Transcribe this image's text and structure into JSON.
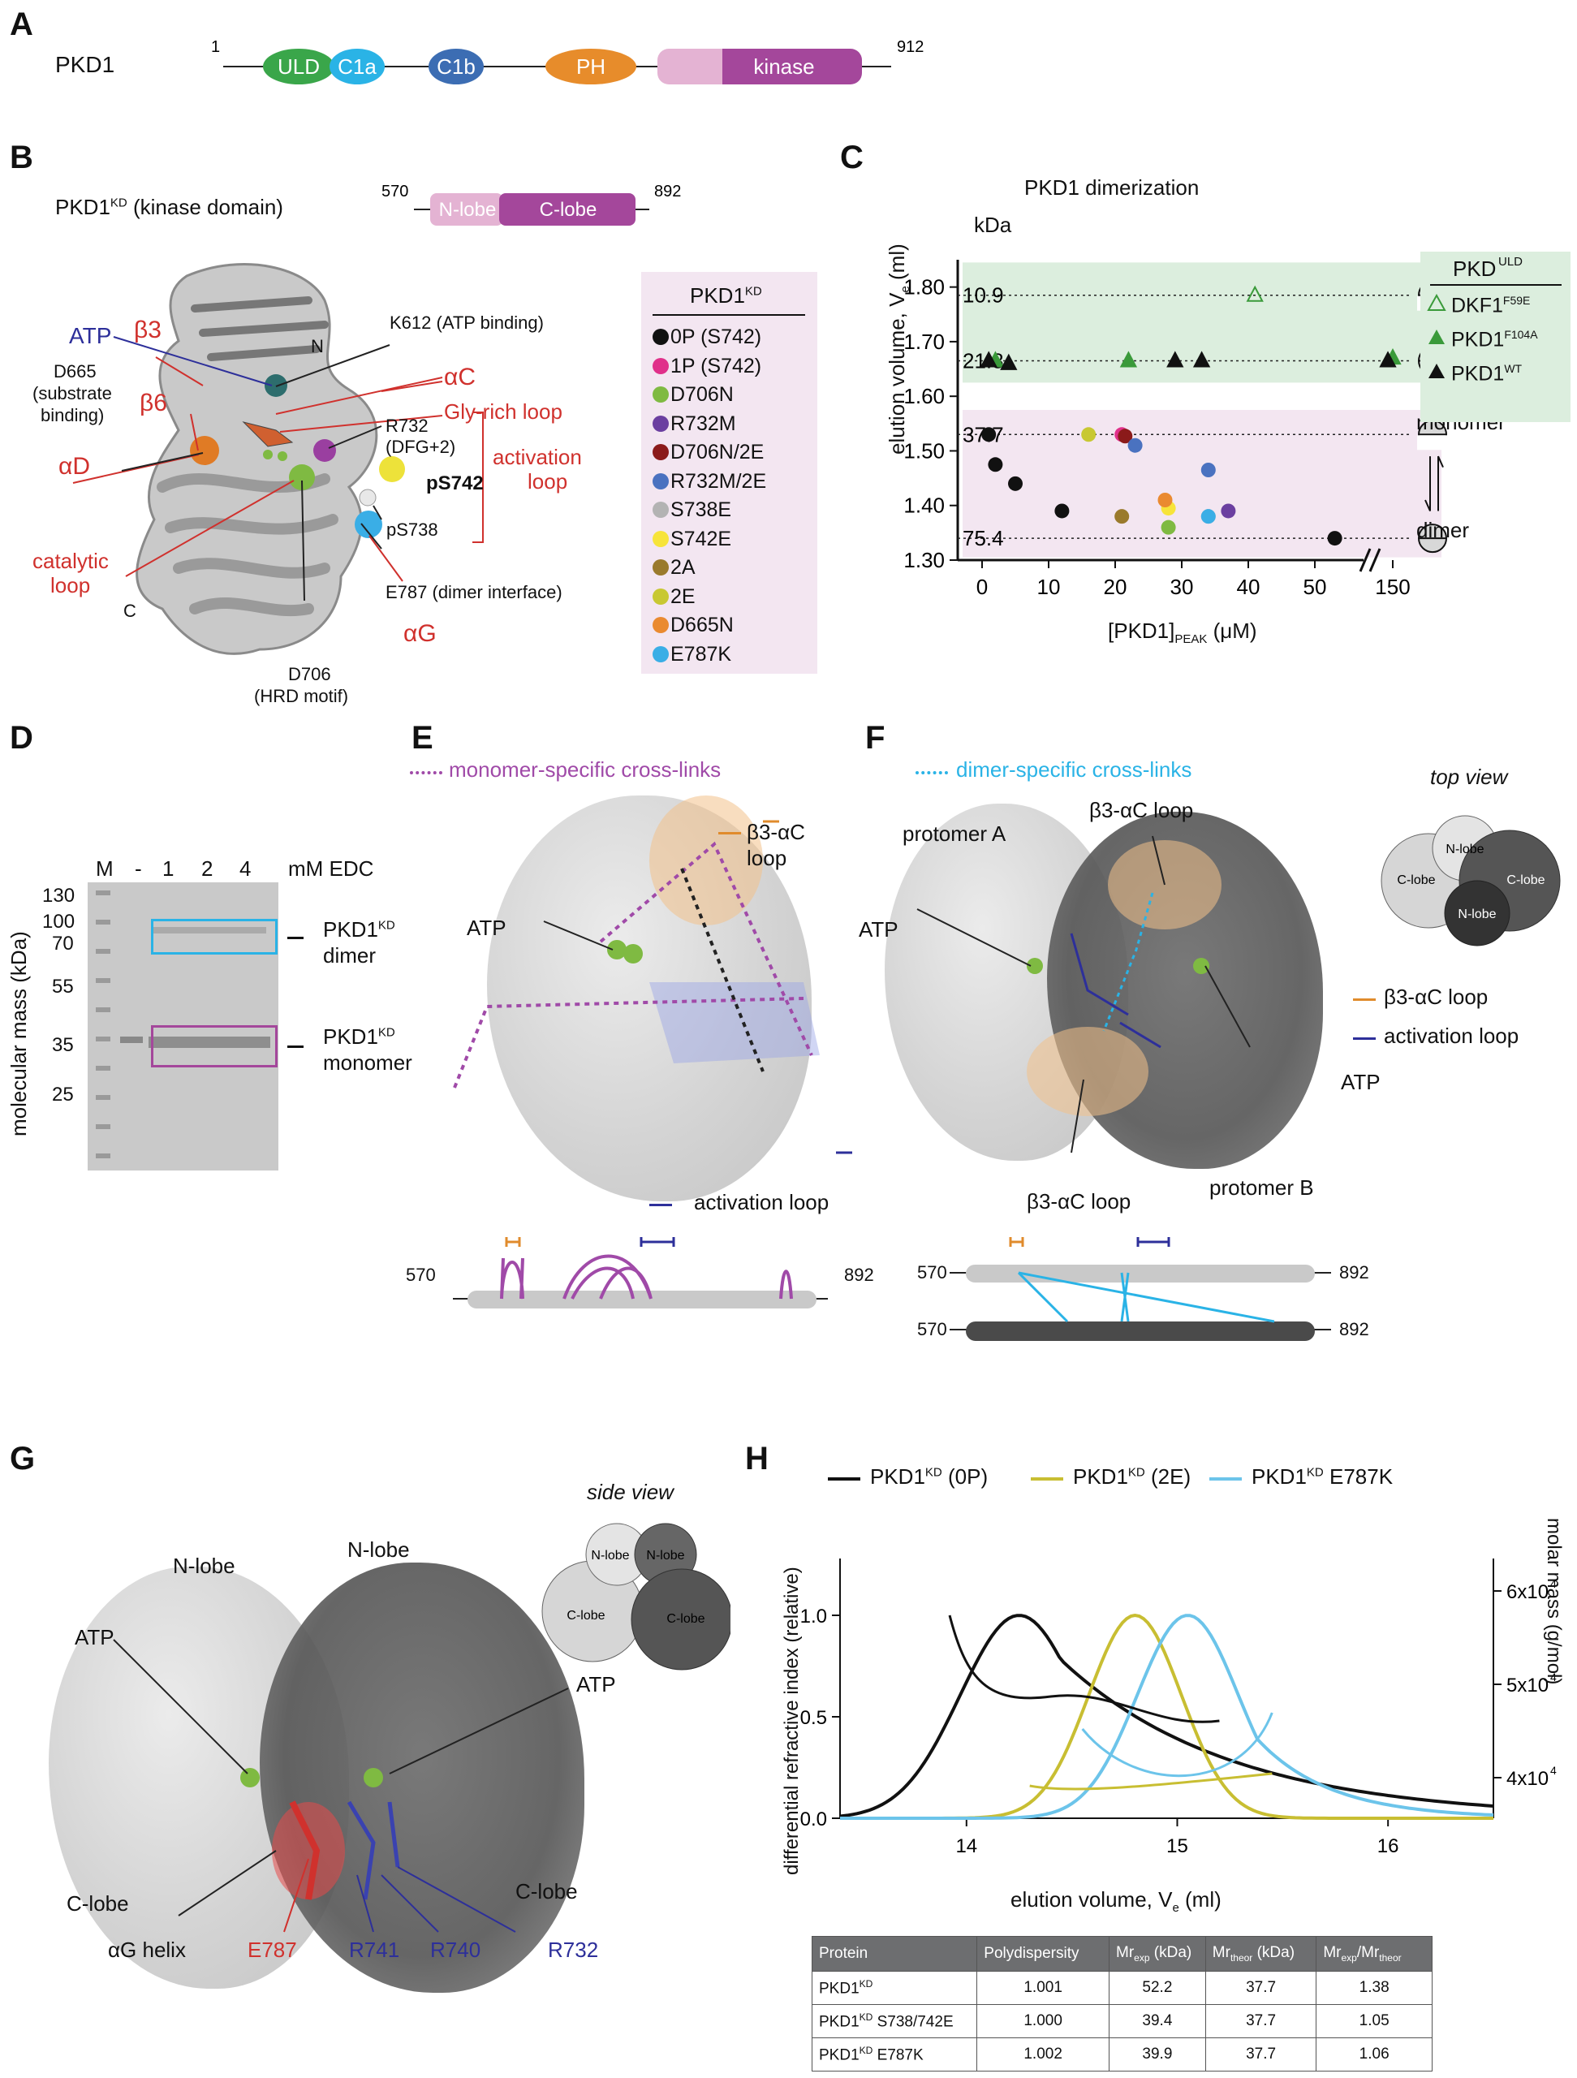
{
  "panels": {
    "A": "A",
    "B": "B",
    "C": "C",
    "D": "D",
    "E": "E",
    "F": "F",
    "G": "G",
    "H": "H"
  },
  "panelA": {
    "protein": "PKD1",
    "start": "1",
    "end": "912",
    "domains": [
      "ULD",
      "C1a",
      "C1b",
      "PH",
      "kinase"
    ],
    "colors": {
      "ULD": "#3aa64a",
      "C1a": "#2ab3e6",
      "C1b": "#3c6db3",
      "PH": "#e78c2b",
      "kinase_light": "#e4b3d3",
      "kinase": "#a4479b"
    }
  },
  "panelB": {
    "title": "PKD1",
    "title_sup": "KD",
    "title_rest": " (kinase domain)",
    "start": "570",
    "end": "892",
    "nlobe": "N-lobe",
    "clobe": "C-lobe",
    "labels": {
      "b3": "β3",
      "N": "N",
      "ATP": "ATP",
      "K612": "K612 (ATP binding)",
      "D665": "D665",
      "D665b": "(substrate",
      "D665c": "binding)",
      "b6": "β6",
      "aC": "αC",
      "gly": "Gly-rich loop",
      "R732": "R732",
      "R732b": "(DFG+2)",
      "aD": "αD",
      "activation": "activation",
      "activation2": "loop",
      "pS742": "pS742",
      "pS738": "pS738",
      "catalytic": "catalytic",
      "catalytic2": "loop",
      "C": "C",
      "E787": "E787 (dimer interface)",
      "aG": "αG",
      "D706": "D706",
      "D706b": "(HRD motif)"
    },
    "legend_title": "PKD1",
    "legend_sup": "KD",
    "legend": [
      {
        "label": "0P (S742)",
        "color": "#111111"
      },
      {
        "label": "1P (S742)",
        "color": "#e0308a"
      },
      {
        "label": "D706N",
        "color": "#7fba42"
      },
      {
        "label": "R732M",
        "color": "#6b3fa0"
      },
      {
        "label": "D706N/2E",
        "color": "#8b1a1a"
      },
      {
        "label": "R732M/2E",
        "color": "#4a72c0"
      },
      {
        "label": "S738E",
        "color": "#b3b3b3"
      },
      {
        "label": "S742E",
        "color": "#f7e43a"
      },
      {
        "label": "2A",
        "color": "#9a7a2c"
      },
      {
        "label": "2E",
        "color": "#c8c832"
      },
      {
        "label": "D665N",
        "color": "#ea8a30"
      },
      {
        "label": "E787K",
        "color": "#3aaee6"
      }
    ]
  },
  "panelC": {
    "title": "PKD1 dimerization",
    "kda": "kDa",
    "xlabel_pre": "[PKD1]",
    "xlabel_sub": "PEAK",
    "xlabel_post": " (μM)",
    "ylabel": "elution volume, V",
    "ylabel_sub": "e",
    "ylabel_post": " (ml)",
    "kda_marks": [
      "10.9",
      "21.8",
      "37.7",
      "75.4"
    ],
    "monomer": "monomer",
    "dimer": "dimer",
    "legend_title": "PKD",
    "legend_title_sup": "ULD",
    "legend": [
      {
        "label": "DKF1",
        "sup": "F59E"
      },
      {
        "label": "PKD1",
        "sup": "F104A"
      },
      {
        "label": "PKD1",
        "sup": "WT"
      }
    ]
  },
  "chart_data": {
    "type": "scatter",
    "title": "PKD1 dimerization",
    "xlabel": "[PKD1]PEAK (μM)",
    "ylabel": "elution volume, Ve (ml)",
    "ylim": [
      1.3,
      1.85
    ],
    "yticks": [
      1.3,
      1.4,
      1.5,
      1.6,
      1.7,
      1.8
    ],
    "xticks": [
      "0",
      "10",
      "20",
      "30",
      "40",
      "50",
      "150"
    ],
    "reference_lines": [
      {
        "kda": "10.9",
        "y": 1.785
      },
      {
        "kda": "21.8",
        "y": 1.665
      },
      {
        "kda": "37.7",
        "y": 1.53
      },
      {
        "kda": "75.4",
        "y": 1.34
      }
    ],
    "series": [
      {
        "name": "0P (S742)",
        "color": "#111111",
        "points": [
          [
            1,
            1.53
          ],
          [
            2,
            1.475
          ],
          [
            5,
            1.44
          ],
          [
            12,
            1.39
          ],
          [
            53,
            1.34
          ]
        ]
      },
      {
        "name": "1P (S742)",
        "color": "#e0308a",
        "points": [
          [
            21,
            1.53
          ]
        ]
      },
      {
        "name": "D706N",
        "color": "#7fba42",
        "points": [
          [
            28,
            1.36
          ]
        ]
      },
      {
        "name": "R732M",
        "color": "#6b3fa0",
        "points": [
          [
            37,
            1.39
          ]
        ]
      },
      {
        "name": "D706N/2E",
        "color": "#8b1a1a",
        "points": [
          [
            21.5,
            1.527
          ]
        ]
      },
      {
        "name": "R732M/2E",
        "color": "#4a72c0",
        "points": [
          [
            23,
            1.51
          ],
          [
            34,
            1.465
          ]
        ]
      },
      {
        "name": "S738E",
        "color": "#b3b3b3",
        "points": [
          [
            34,
            1.38
          ]
        ]
      },
      {
        "name": "S742E",
        "color": "#f7e43a",
        "points": [
          [
            28,
            1.395
          ]
        ]
      },
      {
        "name": "2A",
        "color": "#9a7a2c",
        "points": [
          [
            21,
            1.38
          ]
        ]
      },
      {
        "name": "2E",
        "color": "#c8c832",
        "points": [
          [
            16,
            1.53
          ]
        ]
      },
      {
        "name": "D665N",
        "color": "#ea8a30",
        "points": [
          [
            27.5,
            1.41
          ]
        ]
      },
      {
        "name": "E787K",
        "color": "#3aaee6",
        "points": [
          [
            34,
            1.38
          ]
        ]
      },
      {
        "name": "DKF1 F59E",
        "color": "#3a9a3a",
        "marker": "open-triangle",
        "points": [
          [
            41,
            1.785
          ]
        ]
      },
      {
        "name": "PKD1 F104A",
        "color": "#3a9a3a",
        "marker": "triangle",
        "points": [
          [
            2,
            1.665
          ],
          [
            22,
            1.665
          ],
          [
            150,
            1.67
          ]
        ]
      },
      {
        "name": "PKD1 WT",
        "color": "#111111",
        "marker": "triangle",
        "points": [
          [
            1,
            1.665
          ],
          [
            4,
            1.66
          ],
          [
            29,
            1.665
          ],
          [
            33,
            1.665
          ],
          [
            147,
            1.665
          ]
        ]
      }
    ]
  },
  "panelD": {
    "lanes": [
      "M",
      "-",
      "1",
      "2",
      "4"
    ],
    "unit": "mM EDC",
    "ylabel": "molecular mass (kDa)",
    "markers": [
      "130",
      "100",
      "70",
      "55",
      "35",
      "25"
    ],
    "dimer1": "PKD1",
    "dimer_sup": "KD",
    "dimer2": "dimer",
    "mono1": "PKD1",
    "mono_sup": "KD",
    "mono2": "monomer"
  },
  "panelE": {
    "legend": "monomer-specific cross-links",
    "b3ac": "β3-αC",
    "b3ac2": "loop",
    "atp": "ATP",
    "actloop": "activation loop",
    "start": "570",
    "end": "892"
  },
  "panelF": {
    "legend": "dimer-specific cross-links",
    "topview": "top view",
    "protA": "protomer A",
    "protB": "protomer B",
    "b3ac_top": "β3-αC loop",
    "b3ac_bottom": "β3-αC loop",
    "atp_left": "ATP",
    "atp_right": "ATP",
    "leg_b3ac": "β3-αC loop",
    "leg_act": "activation loop",
    "lobes": [
      "N-lobe",
      "C-lobe",
      "C-lobe",
      "N-lobe"
    ],
    "start1": "570",
    "end1": "892",
    "start2": "570",
    "end2": "892"
  },
  "panelG": {
    "sideview": "side view",
    "nlobe1": "N-lobe",
    "nlobe2": "N-lobe",
    "clobe1": "C-lobe",
    "clobe2": "C-lobe",
    "atp1": "ATP",
    "atp2": "ATP",
    "aG": "αG helix",
    "E787": "E787",
    "R741": "R741",
    "R740": "R740",
    "R732": "R732",
    "lobes": [
      "N-lobe",
      "N-lobe",
      "C-lobe",
      "C-lobe"
    ]
  },
  "panelH": {
    "legend": [
      {
        "label": "PKD1",
        "sup": "KD",
        "post": " (0P)",
        "color": "#111111"
      },
      {
        "label": "PKD1",
        "sup": "KD",
        "post": " (2E)",
        "color": "#c8be32"
      },
      {
        "label": "PKD1",
        "sup": "KD",
        "post": " E787K",
        "color": "#6cc4ea"
      }
    ],
    "ylabel_left": "differential refractive index (relative)",
    "ylabel_right": "molar mass (g/mol)",
    "xlabel": "elution volume, V",
    "xlabel_sub": "e",
    "xlabel_post": " (ml)",
    "xticks": [
      "14",
      "15",
      "16"
    ],
    "yticks_left": [
      "0.0",
      "0.5",
      "1.0"
    ],
    "yticks_right": [
      "4x10",
      "5x10",
      "6x10"
    ],
    "table": {
      "headers": [
        "Protein",
        "Polydispersity",
        "Mr",
        "Mr",
        "Mr"
      ],
      "header_subs": [
        "",
        "",
        "exp",
        "theor",
        "exp"
      ],
      "header_post": [
        "",
        "",
        " (kDa)",
        " (kDa)",
        "/Mr"
      ],
      "header_post_sub": [
        "",
        "",
        "",
        "",
        "theor"
      ],
      "rows": [
        [
          "PKD1",
          "KD",
          "",
          "1.001",
          "52.2",
          "37.7",
          "1.38"
        ],
        [
          "PKD1",
          "KD",
          " S738/742E",
          "1.000",
          "39.4",
          "37.7",
          "1.05"
        ],
        [
          "PKD1",
          "KD",
          " E787K",
          "1.002",
          "39.9",
          "37.7",
          "1.06"
        ]
      ]
    }
  }
}
